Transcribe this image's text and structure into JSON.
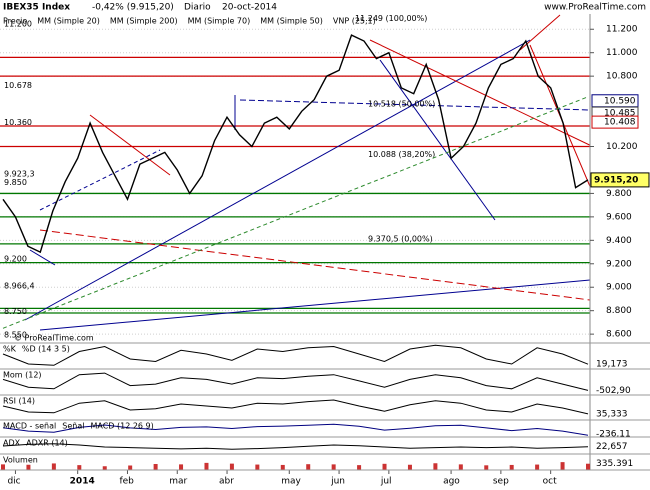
{
  "chart_data": {
    "type": "line",
    "title": "IBEX35 Index",
    "subtitle": "-0,42% (9.915,20)",
    "period": "Diario",
    "date": "20-oct-2014",
    "source": "www.ProRealTime.com",
    "watermark": "© ProRealTime.com",
    "categories": [
      null,
      "dic",
      null,
      null,
      null,
      null,
      "2014",
      null,
      null,
      null,
      "feb",
      null,
      null,
      null,
      "mar",
      null,
      null,
      null,
      "abr",
      null,
      null,
      null,
      null,
      "may",
      null,
      null,
      null,
      "jun",
      null,
      null,
      null,
      "jul",
      null,
      null,
      null,
      null,
      "ago",
      null,
      null,
      null,
      "sep",
      null,
      null,
      null,
      "oct",
      null,
      null,
      null
    ],
    "series": [
      {
        "name": "Precio",
        "color": "#000000",
        "values": [
          9750,
          9600,
          9350,
          9300,
          9650,
          9900,
          10100,
          10400,
          10150,
          9950,
          9750,
          10050,
          10100,
          10150,
          10000,
          9800,
          9950,
          10250,
          10450,
          10300,
          10200,
          10400,
          10450,
          10350,
          10500,
          10600,
          10800,
          10850,
          11150,
          11100,
          10950,
          11000,
          10700,
          10650,
          10900,
          10600,
          10100,
          10200,
          10400,
          10700,
          10900,
          10950,
          11100,
          10800,
          10700,
          10400,
          9850,
          9915.2
        ]
      },
      {
        "name": "MM (Simple 200)",
        "color": "#2e8b2e",
        "dashed": true,
        "values": [
          8650,
          8692,
          8734,
          8776,
          8818,
          8860,
          8902,
          8944,
          8986,
          9028,
          9070,
          9112,
          9154,
          9196,
          9238,
          9280,
          9322,
          9364,
          9406,
          9448,
          9490,
          9532,
          9574,
          9616,
          9658,
          9700,
          9742,
          9784,
          9826,
          9868,
          9910,
          9952,
          9994,
          10036,
          10078,
          10120,
          10162,
          10204,
          10246,
          10288,
          10330,
          10372,
          10414,
          10456,
          10498,
          10540,
          10582,
          10624
        ]
      }
    ],
    "legend_extra": [
      {
        "name": "MM (Simple 20)",
        "color": "#cc0000"
      },
      {
        "name": "MM (Simple 70)",
        "color": "#000080"
      },
      {
        "name": "MM (Simple 50)",
        "color": "#bbbbbb"
      },
      {
        "name": "VNP (25,1)",
        "color": "#bbbbbb"
      }
    ],
    "ylim": [
      8550,
      11330
    ],
    "yticks": [
      {
        "value": 11200,
        "label": "11.200"
      },
      {
        "value": 11000,
        "label": "11.000"
      },
      {
        "value": 10800,
        "label": "10.800"
      },
      {
        "value": 10200,
        "label": "10.200"
      },
      {
        "value": 9800,
        "label": "9.800"
      },
      {
        "value": 9600,
        "label": "9.600"
      },
      {
        "value": 9400,
        "label": "9.400"
      },
      {
        "value": 9200,
        "label": "9.200"
      },
      {
        "value": 9000,
        "label": "9.000"
      },
      {
        "value": 8800,
        "label": "8.800"
      },
      {
        "value": 8600,
        "label": "8.600"
      }
    ],
    "grid": true,
    "markers": [
      {
        "value": 10590,
        "label": "10.590",
        "color": "#000080"
      },
      {
        "value": 10485,
        "label": "10.485",
        "color": "#444444"
      },
      {
        "value": 10408,
        "label": "10.408",
        "color": "#cc0000"
      }
    ],
    "last": {
      "value": 9915.2,
      "label": "9.915,20",
      "color": "#ffff66"
    },
    "hlines": [
      {
        "value": 10960,
        "color": "#cc0000"
      },
      {
        "value": 10800,
        "color": "#cc0000"
      },
      {
        "value": 10375,
        "color": "#cc0000"
      },
      {
        "value": 10200,
        "color": "#cc0000"
      },
      {
        "value": 9800,
        "color": "#007700"
      },
      {
        "value": 9600,
        "color": "#007700"
      },
      {
        "value": 9370,
        "color": "#007700"
      },
      {
        "value": 9210,
        "color": "#007700"
      },
      {
        "value": 8820,
        "color": "#007700"
      },
      {
        "value": 8780,
        "color": "#007700"
      }
    ],
    "fib_labels": [
      {
        "text": "11.249 (100,00%)",
        "value": 11249
      },
      {
        "text": "10.518 (50,00%)",
        "value": 10518
      },
      {
        "text": "10.088 (38,20%)",
        "value": 10088
      },
      {
        "text": "9.370,5 (0,00%)",
        "value": 9370.5
      }
    ],
    "profile_labels": [
      {
        "text": "11.200",
        "value": 11200
      },
      {
        "text": "10.678",
        "value": 10678
      },
      {
        "text": "10.360",
        "value": 10360
      },
      {
        "text": "9.923,3",
        "value": 9923.3
      },
      {
        "text": "9.850",
        "value": 9850
      },
      {
        "text": "9.200",
        "value": 9200
      },
      {
        "text": "8.966,4",
        "value": 8966.4
      },
      {
        "text": "8.750",
        "value": 8750
      },
      {
        "text": "8.550",
        "value": 8550
      }
    ],
    "panels": [
      {
        "type": "line",
        "labels": [
          {
            "text": "%K",
            "color": "#000000"
          },
          {
            "text": "%D (14 3 5)",
            "color": "#cc0000"
          }
        ],
        "color": "#000000",
        "ylim": [
          0,
          100
        ],
        "last_label": "19,173",
        "values": [
          60,
          20,
          15,
          70,
          90,
          40,
          30,
          75,
          60,
          35,
          80,
          70,
          85,
          90,
          60,
          30,
          80,
          95,
          85,
          40,
          20,
          85,
          60,
          19.173
        ]
      },
      {
        "type": "line",
        "labels": [
          {
            "text": "Mom (12)",
            "color": "#000000"
          }
        ],
        "color": "#000000",
        "ylim": [
          -800,
          800
        ],
        "last_label": "-502,90",
        "values": [
          200,
          -300,
          -400,
          500,
          600,
          -200,
          -100,
          300,
          200,
          -100,
          300,
          250,
          400,
          500,
          100,
          -300,
          200,
          500,
          300,
          -200,
          -400,
          300,
          -100,
          -502.9
        ]
      },
      {
        "type": "line",
        "labels": [
          {
            "text": "RSI (14)",
            "color": "#000000"
          }
        ],
        "color": "#000000",
        "ylim": [
          20,
          80
        ],
        "last_label": "35,333",
        "values": [
          55,
          40,
          38,
          62,
          68,
          45,
          48,
          60,
          55,
          50,
          62,
          60,
          66,
          70,
          55,
          42,
          58,
          68,
          62,
          45,
          40,
          60,
          50,
          35.333
        ]
      },
      {
        "type": "line",
        "labels": [
          {
            "text": "MACD - señal",
            "color": "#cc0000"
          },
          {
            "text": "Señal",
            "color": "#cc0000"
          },
          {
            "text": "MACD (12 26 9)",
            "color": "#000080"
          }
        ],
        "color": "#000080",
        "ylim": [
          -300,
          300
        ],
        "last_label": "-236,11",
        "values": [
          50,
          -80,
          -120,
          60,
          150,
          40,
          -20,
          60,
          80,
          20,
          90,
          110,
          140,
          180,
          100,
          -40,
          30,
          120,
          140,
          40,
          -60,
          20,
          -80,
          -236.11
        ]
      },
      {
        "type": "line",
        "labels": [
          {
            "text": "ADX",
            "color": "#000000"
          },
          {
            "text": "ADXR (14)",
            "color": "#cc0000"
          }
        ],
        "color": "#000000",
        "ylim": [
          0,
          50
        ],
        "last_label": "22,657",
        "values": [
          25,
          30,
          32,
          28,
          22,
          20,
          18,
          16,
          18,
          15,
          17,
          20,
          24,
          28,
          26,
          22,
          18,
          20,
          22,
          20,
          22,
          18,
          20,
          22.657
        ]
      },
      {
        "type": "bar",
        "labels": [
          {
            "text": "Volumen",
            "color": "#000000"
          }
        ],
        "color": "#cc3333",
        "ylim": [
          0,
          800000
        ],
        "last_label": "335.391",
        "values": [
          300000,
          280000,
          350000,
          260000,
          200000,
          240000,
          320000,
          300000,
          380000,
          340000,
          290000,
          270000,
          310000,
          300000,
          260000,
          330000,
          280000,
          360000,
          300000,
          250000,
          270000,
          290000,
          420000,
          335391
        ]
      }
    ]
  }
}
